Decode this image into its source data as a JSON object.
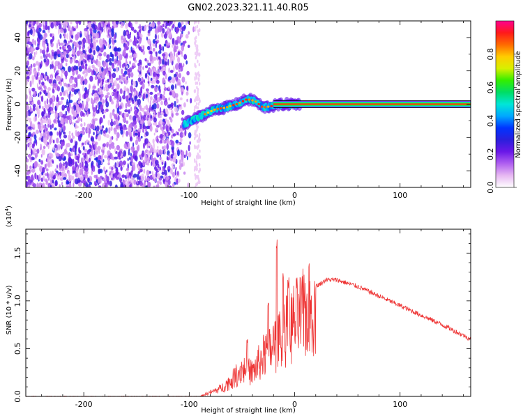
{
  "title": "GN02.2023.321.11.40.R05",
  "chart_data": [
    {
      "type": "heatmap",
      "xlabel": "Height of straight line (km)",
      "ylabel": "Frequency (Hz)",
      "xlim": [
        -255,
        167
      ],
      "ylim": [
        -50,
        50
      ],
      "x_ticks": [
        -200,
        -100,
        0,
        100
      ],
      "y_ticks": [
        -40,
        -20,
        0,
        20,
        40
      ],
      "colorbar": {
        "label": "Normalized spectral amplitude",
        "range": [
          0,
          1
        ],
        "ticks": [
          "0.0",
          "0.2",
          "0.4",
          "0.6",
          "0.8"
        ],
        "colormap": [
          "#ffffff",
          "#e7b8f2",
          "#b060f0",
          "#6a18e8",
          "#2b1fdc",
          "#0034ff",
          "#00a8ff",
          "#00e6d8",
          "#00dd66",
          "#33ee00",
          "#d8f000",
          "#ffcc00",
          "#ff6a00",
          "#ff1a1a",
          "#ff0090"
        ]
      },
      "features": {
        "noise_region_x": [
          -255,
          -95
        ],
        "signal_track": [
          {
            "x": -105,
            "y": -12
          },
          {
            "x": -95,
            "y": -9
          },
          {
            "x": -85,
            "y": -6
          },
          {
            "x": -75,
            "y": -3
          },
          {
            "x": -65,
            "y": -2
          },
          {
            "x": -55,
            "y": 0
          },
          {
            "x": -45,
            "y": 3
          },
          {
            "x": -38,
            "y": 2
          },
          {
            "x": -30,
            "y": -2
          },
          {
            "x": -20,
            "y": -1
          },
          {
            "x": -10,
            "y": 0
          },
          {
            "x": 0,
            "y": 0
          },
          {
            "x": 167,
            "y": 0
          }
        ],
        "constant_band": {
          "x_from": -20,
          "x_to": 167,
          "y": 0
        }
      }
    },
    {
      "type": "line",
      "xlabel": "Height of straight line (km)",
      "ylabel": "SNR (10 * v/v)",
      "y_multiplier": "(x10",
      "y_multiplier_exp": "4",
      "y_multiplier_close": ")",
      "xlim": [
        -255,
        167
      ],
      "ylim": [
        0,
        1.75
      ],
      "x_ticks": [
        -200,
        -100,
        0,
        100
      ],
      "y_ticks": [
        "0.0",
        "0.5",
        "1.0",
        "1.5"
      ],
      "series": [
        {
          "color": "#ee3333",
          "envelope": [
            {
              "x": -255,
              "y": 0.0
            },
            {
              "x": -90,
              "y": 0.0
            },
            {
              "x": -80,
              "y": 0.05
            },
            {
              "x": -70,
              "y": 0.1
            },
            {
              "x": -60,
              "y": 0.2
            },
            {
              "x": -50,
              "y": 0.35
            },
            {
              "x": -40,
              "y": 0.3
            },
            {
              "x": -30,
              "y": 0.5
            },
            {
              "x": -25,
              "y": 0.55
            },
            {
              "x": -20,
              "y": 0.65
            },
            {
              "x": -15,
              "y": 0.7
            },
            {
              "x": -10,
              "y": 0.8
            },
            {
              "x": -5,
              "y": 0.85
            },
            {
              "x": 0,
              "y": 0.95
            },
            {
              "x": 10,
              "y": 1.05
            },
            {
              "x": 20,
              "y": 1.15
            },
            {
              "x": 30,
              "y": 1.22
            },
            {
              "x": 40,
              "y": 1.22
            },
            {
              "x": 60,
              "y": 1.15
            },
            {
              "x": 80,
              "y": 1.05
            },
            {
              "x": 100,
              "y": 0.95
            },
            {
              "x": 120,
              "y": 0.85
            },
            {
              "x": 140,
              "y": 0.75
            },
            {
              "x": 167,
              "y": 0.6
            }
          ],
          "spikes": [
            {
              "x": -17,
              "y": 1.72
            },
            {
              "x": -11,
              "y": 1.3
            },
            {
              "x": -6,
              "y": 1.25
            },
            {
              "x": -25,
              "y": 1.0
            },
            {
              "x": -45,
              "y": 0.6
            }
          ]
        }
      ]
    }
  ]
}
